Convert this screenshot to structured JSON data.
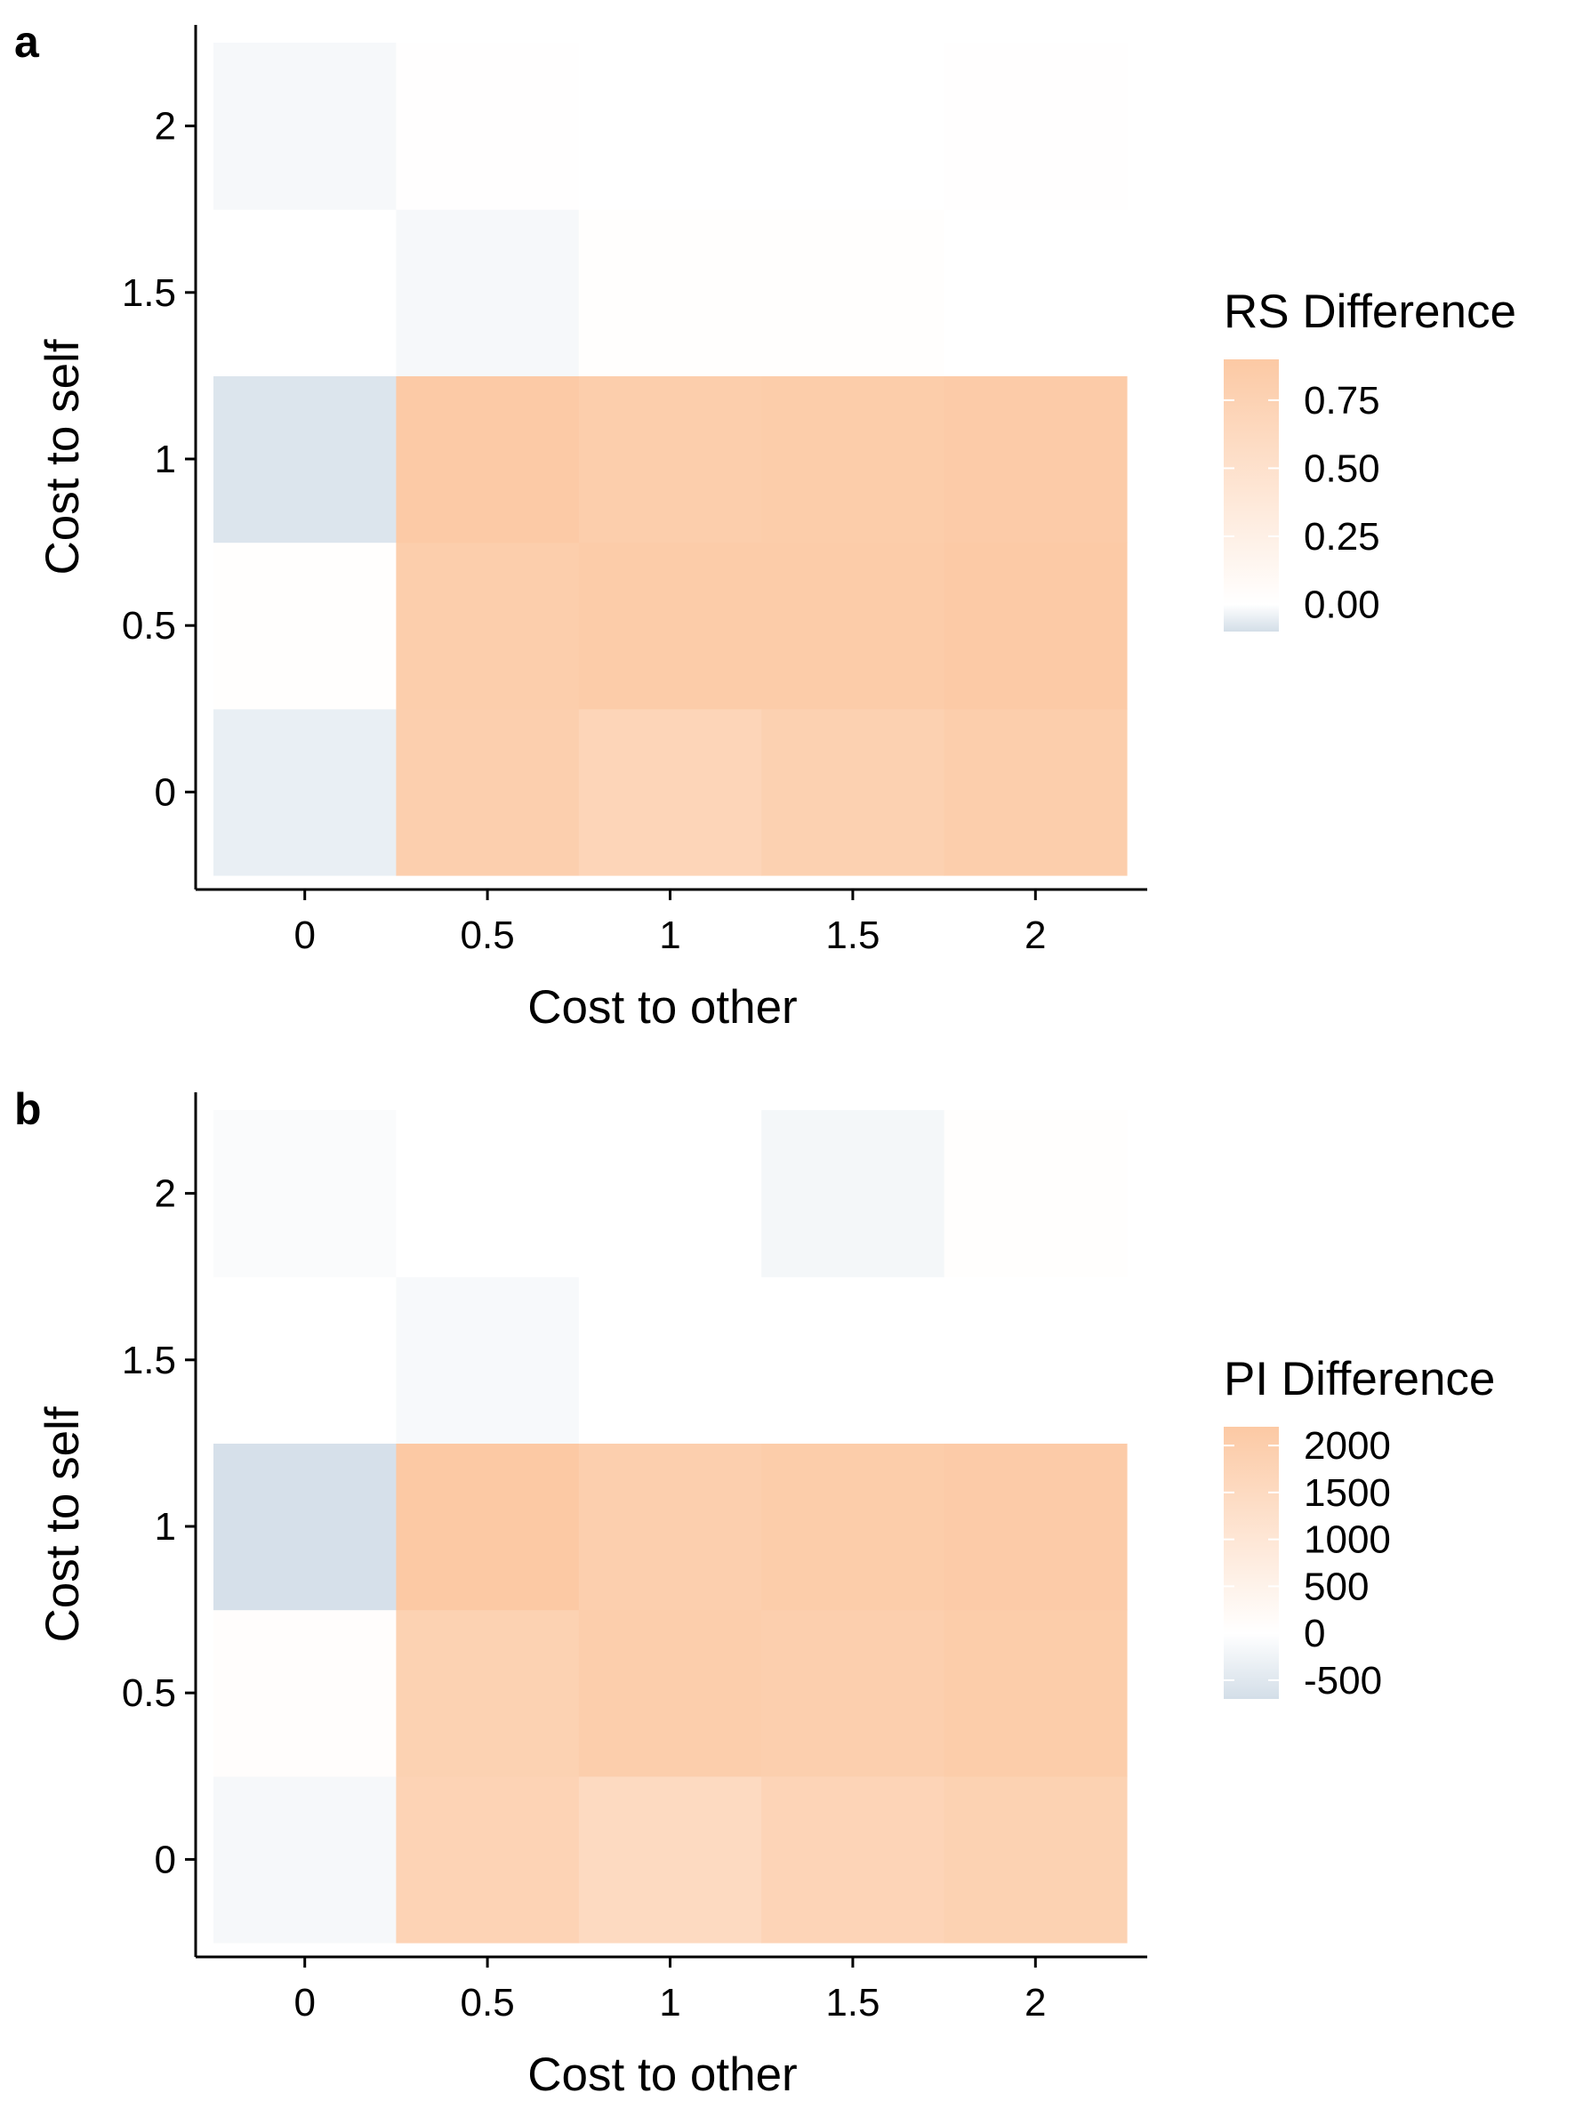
{
  "colors": {
    "low": "#d3dee8",
    "mid": "#ffffff",
    "high": "#fcc9a4",
    "axis": "#000000"
  },
  "chart_data": [
    {
      "panel_label": "a",
      "type": "heatmap",
      "x_categories": [
        "0",
        "0.5",
        "1",
        "1.5",
        "2"
      ],
      "y_categories": [
        "0",
        "0.5",
        "1",
        "1.5",
        "2"
      ],
      "xlabel": "Cost to other",
      "ylabel": "Cost to self",
      "legend_title": "RS Difference",
      "legend_ticks": [
        0.75,
        0.5,
        0.25,
        0.0
      ],
      "legend_tick_labels": [
        "0.75",
        "0.50",
        "0.25",
        "0.00"
      ],
      "scale": {
        "min": -0.1,
        "mid": 0,
        "max": 0.9
      },
      "values": [
        [
          -0.05,
          0.8,
          0.7,
          0.77,
          0.82
        ],
        [
          0.02,
          0.82,
          0.85,
          0.85,
          0.88
        ],
        [
          -0.08,
          0.88,
          0.82,
          0.84,
          0.86
        ],
        [
          0.0,
          -0.02,
          0.02,
          0.02,
          0.0
        ],
        [
          -0.02,
          0.01,
          0.0,
          0.0,
          0.01
        ]
      ],
      "grid": false,
      "legend_position": "right"
    },
    {
      "panel_label": "b",
      "type": "heatmap",
      "x_categories": [
        "0",
        "0.5",
        "1",
        "1.5",
        "2"
      ],
      "y_categories": [
        "0",
        "0.5",
        "1",
        "1.5",
        "2"
      ],
      "xlabel": "Cost to other",
      "ylabel": "Cost to self",
      "legend_title": "PI Difference",
      "legend_ticks": [
        2000,
        1500,
        1000,
        500,
        0,
        -500
      ],
      "legend_tick_labels": [
        "2000",
        "1500",
        "1000",
        "500",
        "0",
        "-500"
      ],
      "scale": {
        "min": -700,
        "mid": 0,
        "max": 2200
      },
      "values": [
        [
          -150,
          1800,
          1500,
          1750,
          1850
        ],
        [
          80,
          1850,
          2000,
          1950,
          2050
        ],
        [
          -650,
          2200,
          1950,
          2050,
          2100
        ],
        [
          0,
          -120,
          0,
          0,
          0
        ],
        [
          -80,
          0,
          0,
          -180,
          60
        ]
      ],
      "grid": false,
      "legend_position": "right"
    }
  ]
}
